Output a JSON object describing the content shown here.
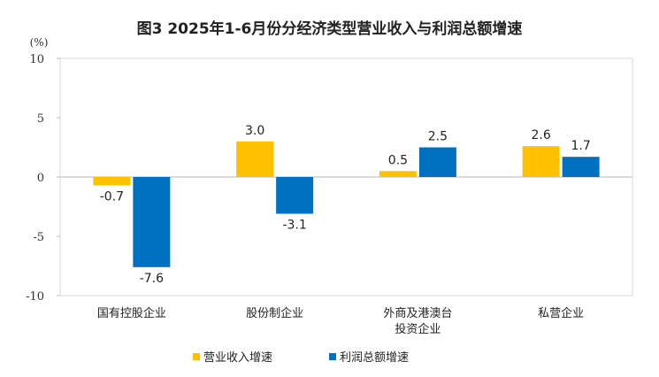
{
  "chart_data": {
    "type": "bar",
    "title": "图3 2025年1-6月份分经济类型营业收入与利润总额增速",
    "ylabel": "(%)",
    "ylim": [
      -10,
      10
    ],
    "yticks": [
      10,
      5,
      0,
      -5,
      -10
    ],
    "categories": [
      "国有控股企业",
      "股份制企业",
      "外商及港澳台\n投资企业",
      "私营企业"
    ],
    "series": [
      {
        "name": "营业收入增速",
        "values": [
          -0.7,
          3.0,
          0.5,
          2.6
        ],
        "color": "#FFC000"
      },
      {
        "name": "利润总额增速",
        "values": [
          -7.6,
          -3.1,
          2.5,
          1.7
        ],
        "color": "#0070C0"
      }
    ],
    "grid": false,
    "legend": "bottom"
  }
}
